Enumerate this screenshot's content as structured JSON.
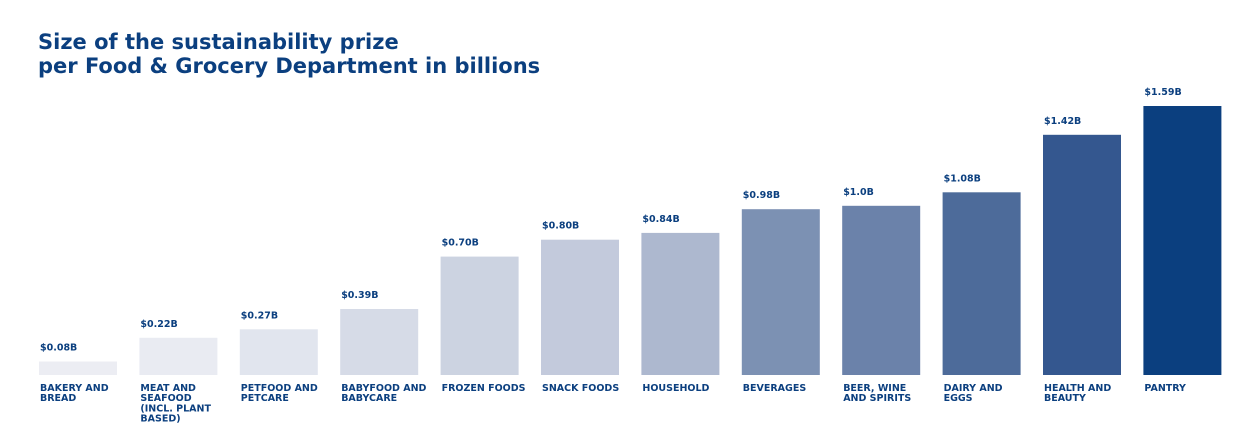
{
  "title_line1": "Size of the sustainability prize",
  "title_line2": "per Food & Grocery Department in billions",
  "chart_data": {
    "type": "bar",
    "title": "Size of the sustainability prize per Food & Grocery Department in billions",
    "xlabel": "",
    "ylabel": "",
    "ylim": [
      0,
      1.59
    ],
    "grid": false,
    "categories": [
      [
        "BAKERY AND",
        "BREAD"
      ],
      [
        "MEAT AND",
        "SEAFOOD",
        "(INCL. PLANT",
        "BASED)"
      ],
      [
        "PETFOOD AND",
        "PETCARE"
      ],
      [
        "BABYFOOD AND",
        "BABYCARE"
      ],
      [
        "FROZEN FOODS"
      ],
      [
        "SNACK FOODS"
      ],
      [
        "HOUSEHOLD"
      ],
      [
        "BEVERAGES"
      ],
      [
        "BEER, WINE",
        "AND SPIRITS"
      ],
      [
        "DAIRY AND",
        "EGGS"
      ],
      [
        "HEALTH AND",
        "BEAUTY"
      ],
      [
        "PANTRY"
      ]
    ],
    "values": [
      0.08,
      0.22,
      0.27,
      0.39,
      0.7,
      0.8,
      0.84,
      0.98,
      1.0,
      1.08,
      1.42,
      1.59
    ],
    "value_labels": [
      "$0.08B",
      "$0.22B",
      "$0.27B",
      "$0.39B",
      "$0.70B",
      "$0.80B",
      "$0.84B",
      "$0.98B",
      "$1.0B",
      "$1.08B",
      "$1.42B",
      "$1.59B"
    ],
    "colors": [
      "#ecedf3",
      "#e9ebf2",
      "#e1e5ee",
      "#d6dbe7",
      "#ccd3e1",
      "#c3cadc",
      "#adb8cf",
      "#7c91b3",
      "#6b82aa",
      "#4d6b9a",
      "#34578f",
      "#0b3f7f"
    ]
  }
}
